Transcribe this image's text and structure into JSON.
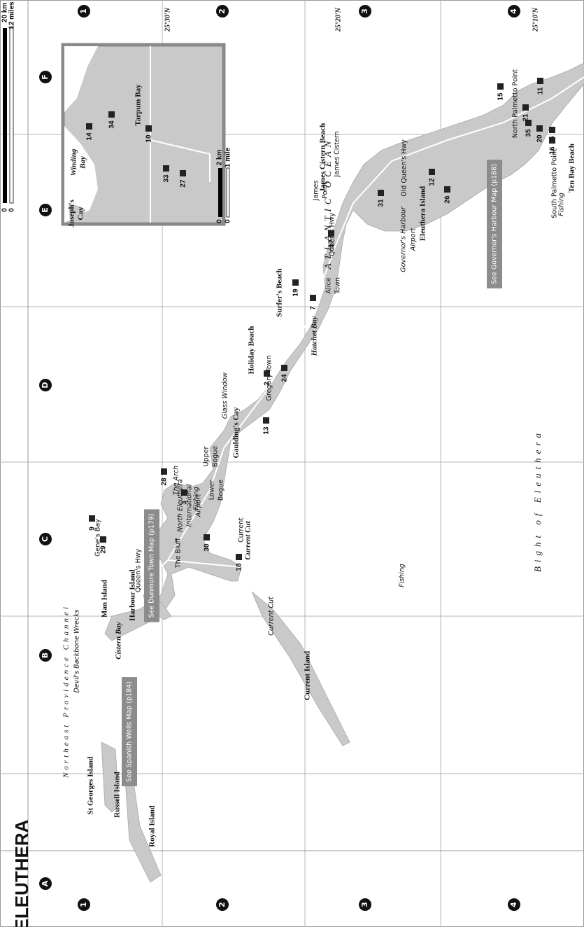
{
  "title": "ELEUTHERA",
  "columns": [
    "A",
    "B",
    "C",
    "D",
    "E",
    "F"
  ],
  "rows": [
    "1",
    "2",
    "3",
    "4"
  ],
  "latitudes": [
    "25°30'N",
    "25°20'N",
    "25°10'N"
  ],
  "scale": [
    "0",
    "0",
    "20 km",
    "12 miles"
  ],
  "water": [
    "Northeast Providence Channel",
    "ATLANTIC OCEAN",
    "Bight of Eleuthera",
    "Cistern Bay",
    "Hatchet Bay"
  ],
  "islands": [
    "St Georges Island",
    "Russell Island",
    "Royal Island",
    "Man Island",
    "Harbour Island",
    "Current Island",
    "Gaulding's Cay",
    "Eleuthera Island"
  ],
  "places": [
    "Gene's Bay",
    "The Bluff",
    "Current",
    "North Eleuthera",
    "International",
    "Airport",
    "Lower",
    "Bogue",
    "Upper",
    "Bogue",
    "Gregory Town",
    "Alice",
    "Town",
    "James",
    "Point",
    "James Cistern",
    "North Palmetto Point",
    "South Palmetto Point"
  ],
  "sites": [
    "The Arch",
    "Fishing",
    "Glass Window",
    "Devil's Backbone Wrecks",
    "Current Cut",
    "Fishing",
    "Governor's Harbour",
    "Airport",
    "Fishing"
  ],
  "beaches": [
    "Holiday Beach",
    "Surfer's Beach",
    "James Cistern Beach",
    "Current Cut",
    "Ten Bay Beach"
  ],
  "roads": [
    "Queen's Hwy",
    "Queen's Hwy",
    "Old Queen's Hwy"
  ],
  "map_refs": [
    "See Spanish Wells Map (p184)",
    "See Dunmore Town Map (p179)",
    "See Governor's Harbour Map (p188)"
  ],
  "poi": [
    "29",
    "9",
    "3",
    "28",
    "30",
    "18",
    "13",
    "2",
    "24",
    "7",
    "19",
    "17",
    "31",
    "12",
    "26",
    "15",
    "35",
    "21",
    "20",
    "11",
    "25",
    "16"
  ],
  "inset": {
    "labels": [
      "Winding",
      "Bay",
      "Joseph's",
      "Cay",
      "Tarpum Bay"
    ],
    "poi": [
      "14",
      "34",
      "10",
      "33",
      "27"
    ],
    "scale": [
      "2 km",
      "1 mile",
      "0",
      "0"
    ]
  }
}
